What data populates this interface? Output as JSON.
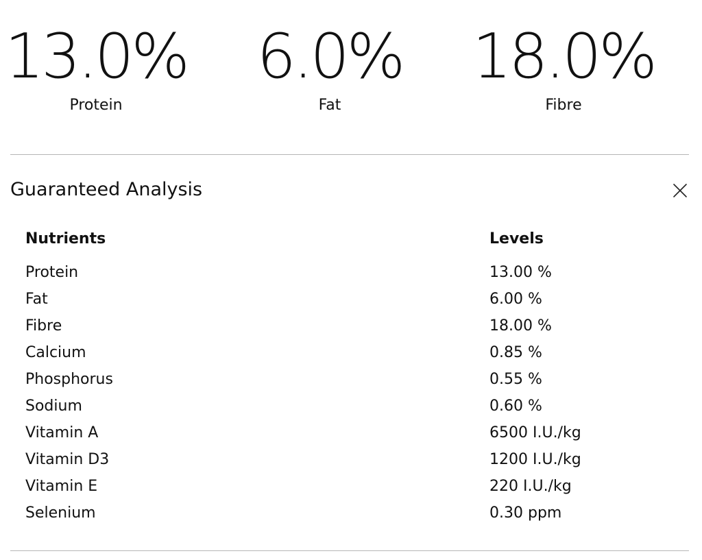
{
  "highlights": [
    {
      "value": "13.0%",
      "label": "Protein"
    },
    {
      "value": "6.0%",
      "label": "Fat"
    },
    {
      "value": "18.0%",
      "label": "Fibre"
    }
  ],
  "analysis": {
    "title": "Guaranteed Analysis",
    "close_icon": "close-icon",
    "headers": {
      "nutrient": "Nutrients",
      "level": "Levels"
    },
    "rows": [
      {
        "nutrient": "Protein",
        "level": "13.00 %"
      },
      {
        "nutrient": "Fat",
        "level": "6.00 %"
      },
      {
        "nutrient": "Fibre",
        "level": "18.00 %"
      },
      {
        "nutrient": "Calcium",
        "level": "0.85 %"
      },
      {
        "nutrient": "Phosphorus",
        "level": "0.55 %"
      },
      {
        "nutrient": "Sodium",
        "level": "0.60 %"
      },
      {
        "nutrient": "Vitamin A",
        "level": "6500 I.U./kg"
      },
      {
        "nutrient": "Vitamin D3",
        "level": "1200 I.U./kg"
      },
      {
        "nutrient": "Vitamin E",
        "level": "220 I.U./kg"
      },
      {
        "nutrient": "Selenium",
        "level": "0.30 ppm"
      }
    ]
  }
}
